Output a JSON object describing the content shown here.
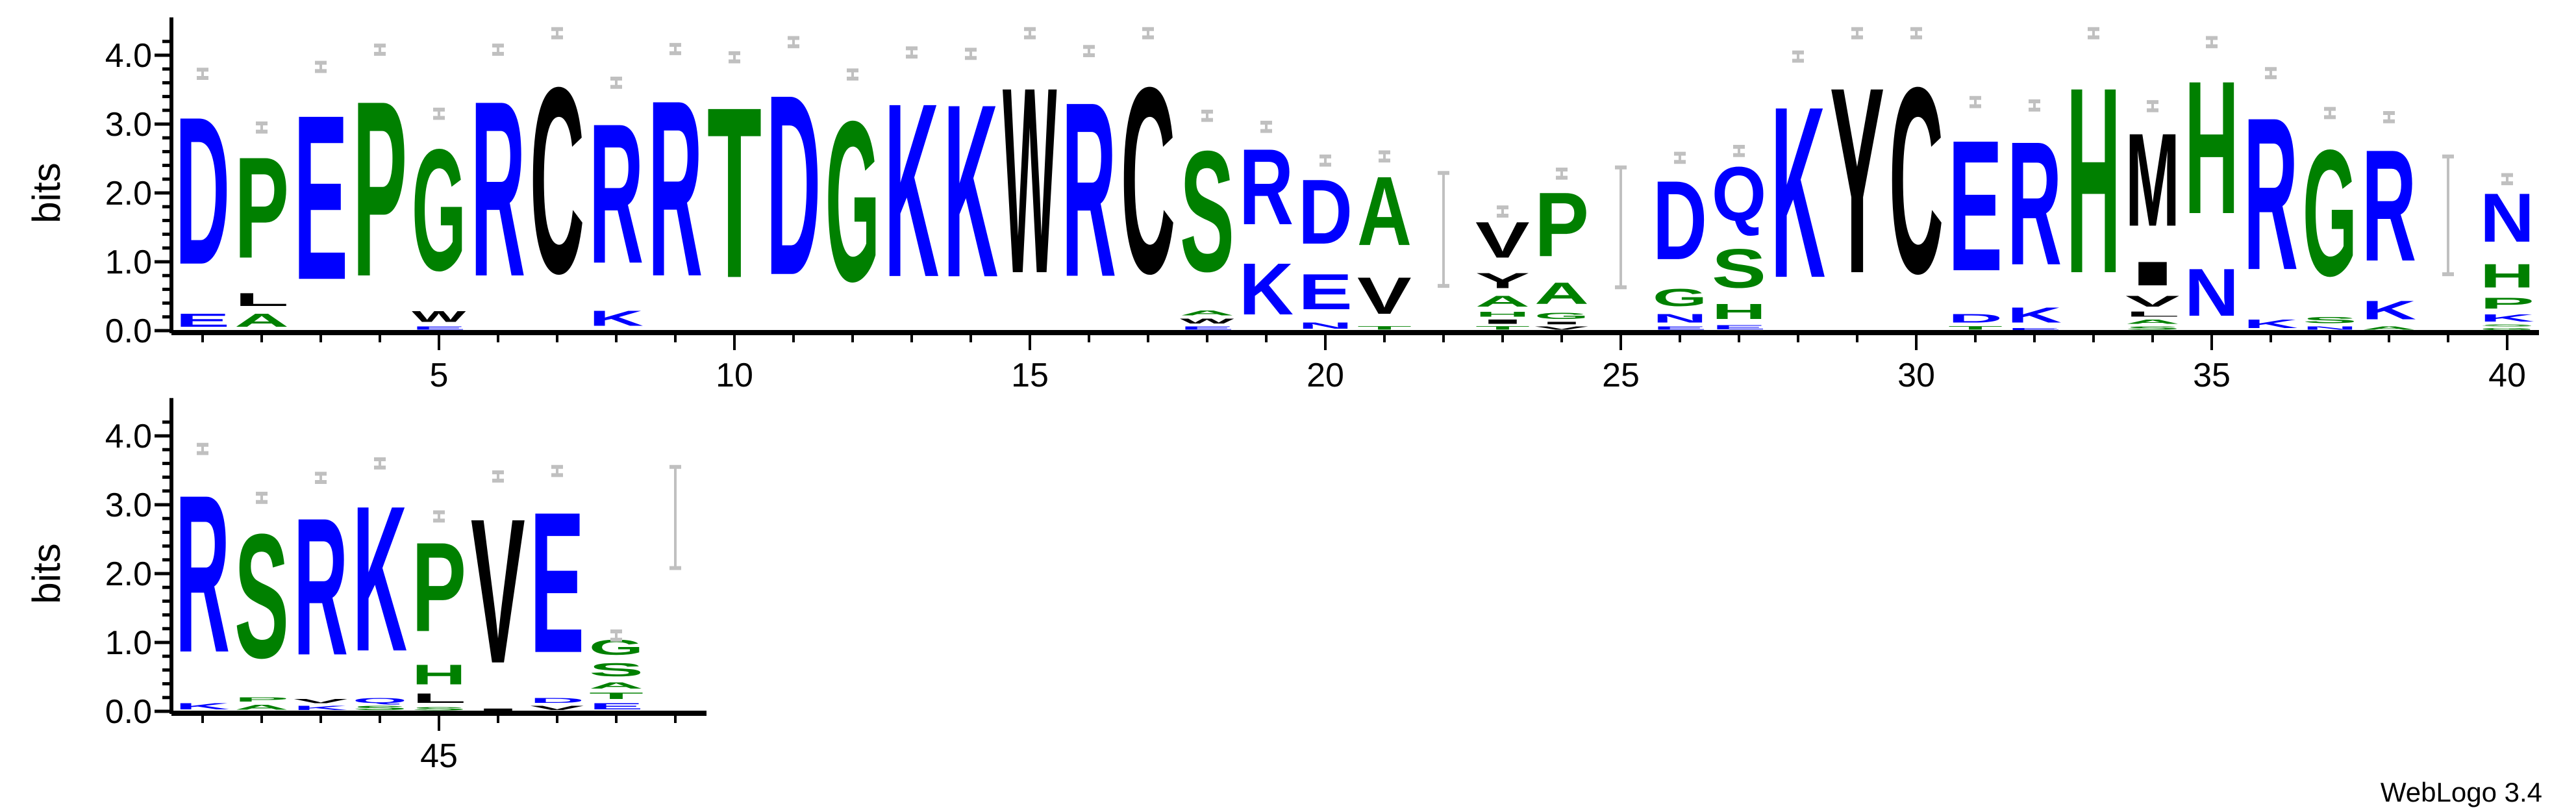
{
  "chart_data": {
    "type": "sequence-logo",
    "ylabel": "bits",
    "ylim": [
      0,
      4.32
    ],
    "yticks": [
      "0.0",
      "1.0",
      "2.0",
      "3.0",
      "4.0"
    ],
    "grid": false,
    "colors": {
      "blue": "#0000ff",
      "green": "#008000",
      "black": "#000000",
      "errorbar": "#c0c0c0"
    },
    "color_map": {
      "D": "blue",
      "E": "blue",
      "K": "blue",
      "R": "blue",
      "N": "blue",
      "Q": "blue",
      "G": "green",
      "S": "green",
      "T": "green",
      "P": "green",
      "H": "green",
      "A": "green",
      "C": "black",
      "W": "black",
      "V": "black",
      "Y": "black",
      "M": "black",
      "L": "black",
      "I": "black",
      "F": "black"
    },
    "rows": [
      {
        "start": 1,
        "end": 40,
        "xtick_labels": [
          "5",
          "10",
          "15",
          "20",
          "25",
          "30",
          "35",
          "40"
        ]
      },
      {
        "start": 41,
        "end": 49,
        "xtick_labels": [
          "45"
        ]
      }
    ],
    "positions": [
      {
        "pos": 1,
        "stack": [
          [
            "E",
            0.3
          ],
          [
            "D",
            3.43
          ]
        ]
      },
      {
        "pos": 2,
        "stack": [
          [
            "A",
            0.3
          ],
          [
            "L",
            0.3
          ],
          [
            "P",
            2.35
          ]
        ]
      },
      {
        "pos": 3,
        "stack": [
          [
            "E",
            3.83
          ]
        ]
      },
      {
        "pos": 4,
        "stack": [
          [
            "P",
            4.08
          ]
        ]
      },
      {
        "pos": 5,
        "stack": [
          [
            "E",
            0.08
          ],
          [
            "W",
            0.25
          ],
          [
            "G",
            2.82
          ]
        ]
      },
      {
        "pos": 6,
        "stack": [
          [
            "R",
            4.08
          ]
        ]
      },
      {
        "pos": 7,
        "stack": [
          [
            "C",
            4.32
          ]
        ]
      },
      {
        "pos": 8,
        "stack": [
          [
            "K",
            0.35
          ],
          [
            "R",
            3.25
          ]
        ]
      },
      {
        "pos": 9,
        "stack": [
          [
            "R",
            4.09
          ]
        ]
      },
      {
        "pos": 10,
        "stack": [
          [
            "T",
            3.97
          ]
        ]
      },
      {
        "pos": 11,
        "stack": [
          [
            "D",
            4.19
          ]
        ]
      },
      {
        "pos": 12,
        "stack": [
          [
            "G",
            3.72
          ]
        ]
      },
      {
        "pos": 13,
        "stack": [
          [
            "K",
            4.04
          ]
        ]
      },
      {
        "pos": 14,
        "stack": [
          [
            "K",
            4.02
          ]
        ]
      },
      {
        "pos": 15,
        "stack": [
          [
            "W",
            4.32
          ]
        ]
      },
      {
        "pos": 16,
        "stack": [
          [
            "R",
            4.06
          ]
        ]
      },
      {
        "pos": 17,
        "stack": [
          [
            "C",
            4.32
          ]
        ]
      },
      {
        "pos": 18,
        "stack": [
          [
            "E",
            0.08
          ],
          [
            "W",
            0.12
          ],
          [
            "A",
            0.12
          ],
          [
            "S",
            2.8
          ]
        ]
      },
      {
        "pos": 19,
        "stack": [
          [
            "K",
            1.2
          ],
          [
            "R",
            1.76
          ]
        ]
      },
      {
        "pos": 20,
        "stack": [
          [
            "N",
            0.15
          ],
          [
            "E",
            0.82
          ],
          [
            "D",
            1.5
          ]
        ]
      },
      {
        "pos": 21,
        "stack": [
          [
            "T",
            0.08
          ],
          [
            "V",
            0.85
          ],
          [
            "A",
            1.6
          ]
        ]
      },
      {
        "pos": 22,
        "stack": [],
        "error_bar": [
          0.65,
          2.29
        ]
      },
      {
        "pos": 23,
        "stack": [
          [
            "T",
            0.08
          ],
          [
            "I",
            0.1
          ],
          [
            "H",
            0.12
          ],
          [
            "A",
            0.25
          ],
          [
            "Y",
            0.35
          ],
          [
            "V",
            0.83
          ]
        ]
      },
      {
        "pos": 24,
        "stack": [
          [
            "V",
            0.08
          ],
          [
            "I",
            0.06
          ],
          [
            "G",
            0.15
          ],
          [
            "A",
            0.5
          ],
          [
            "P",
            1.49
          ]
        ]
      },
      {
        "pos": 25,
        "stack": [],
        "error_bar": [
          0.63,
          2.37
        ]
      },
      {
        "pos": 26,
        "stack": [
          [
            "E",
            0.08
          ],
          [
            "N",
            0.2
          ],
          [
            "G",
            0.4
          ],
          [
            "D",
            1.83
          ]
        ]
      },
      {
        "pos": 27,
        "stack": [
          [
            "E",
            0.1
          ],
          [
            "H",
            0.35
          ],
          [
            "S",
            0.9
          ],
          [
            "Q",
            1.26
          ]
        ]
      },
      {
        "pos": 28,
        "stack": [
          [
            "K",
            3.98
          ]
        ]
      },
      {
        "pos": 29,
        "stack": [
          [
            "Y",
            4.32
          ]
        ]
      },
      {
        "pos": 30,
        "stack": [
          [
            "C",
            4.32
          ]
        ]
      },
      {
        "pos": 31,
        "stack": [
          [
            "T",
            0.08
          ],
          [
            "D",
            0.2
          ],
          [
            "E",
            3.04
          ]
        ]
      },
      {
        "pos": 32,
        "stack": [
          [
            "E",
            0.05
          ],
          [
            "K",
            0.35
          ],
          [
            "R",
            2.87
          ]
        ]
      },
      {
        "pos": 33,
        "stack": [
          [
            "H",
            4.32
          ]
        ]
      },
      {
        "pos": 34,
        "stack": [
          [
            "S",
            0.08
          ],
          [
            "A",
            0.1
          ],
          [
            "L",
            0.12
          ],
          [
            "V",
            0.25
          ],
          [
            "I",
            0.55
          ],
          [
            "M",
            2.16
          ]
        ]
      },
      {
        "pos": 35,
        "stack": [
          [
            "N",
            1.1
          ],
          [
            "H",
            3.09
          ]
        ]
      },
      {
        "pos": 36,
        "stack": [
          [
            "K",
            0.2
          ],
          [
            "R",
            3.54
          ]
        ]
      },
      {
        "pos": 37,
        "stack": [
          [
            "N",
            0.08
          ],
          [
            "S",
            0.15
          ],
          [
            "G",
            2.93
          ]
        ]
      },
      {
        "pos": 38,
        "stack": [
          [
            "A",
            0.08
          ],
          [
            "K",
            0.43
          ],
          [
            "R",
            2.59
          ]
        ]
      },
      {
        "pos": 39,
        "stack": [],
        "error_bar": [
          0.82,
          2.53
        ]
      },
      {
        "pos": 40,
        "stack": [
          [
            "G",
            0.05
          ],
          [
            "S",
            0.05
          ],
          [
            "K",
            0.17
          ],
          [
            "P",
            0.25
          ],
          [
            "H",
            0.55
          ],
          [
            "N",
            1.13
          ]
        ]
      },
      {
        "pos": 41,
        "stack": [
          [
            "K",
            0.15
          ],
          [
            "R",
            3.66
          ]
        ]
      },
      {
        "pos": 42,
        "stack": [
          [
            "A",
            0.12
          ],
          [
            "P",
            0.1
          ],
          [
            "S",
            2.88
          ]
        ]
      },
      {
        "pos": 43,
        "stack": [
          [
            "K",
            0.1
          ],
          [
            "V",
            0.1
          ],
          [
            "R",
            3.19
          ]
        ]
      },
      {
        "pos": 44,
        "stack": [
          [
            "S",
            0.1
          ],
          [
            "Q",
            0.12
          ],
          [
            "K",
            3.38
          ]
        ]
      },
      {
        "pos": 45,
        "stack": [
          [
            "S",
            0.08
          ],
          [
            "L",
            0.22
          ],
          [
            "H",
            0.46
          ],
          [
            "P",
            2.07
          ]
        ]
      },
      {
        "pos": 46,
        "stack": [
          [
            "I",
            0.05
          ],
          [
            "V",
            3.36
          ]
        ]
      },
      {
        "pos": 47,
        "stack": [
          [
            "V",
            0.1
          ],
          [
            "D",
            0.12
          ],
          [
            "E",
            3.27
          ]
        ]
      },
      {
        "pos": 48,
        "stack": [
          [
            "E",
            0.15
          ],
          [
            "T",
            0.15
          ],
          [
            "A",
            0.15
          ],
          [
            "S",
            0.3
          ],
          [
            "G",
            0.35
          ]
        ]
      },
      {
        "pos": 49,
        "stack": [],
        "error_bar": [
          2.08,
          3.55
        ]
      }
    ]
  },
  "footer": {
    "credit": "WebLogo 3.4"
  }
}
